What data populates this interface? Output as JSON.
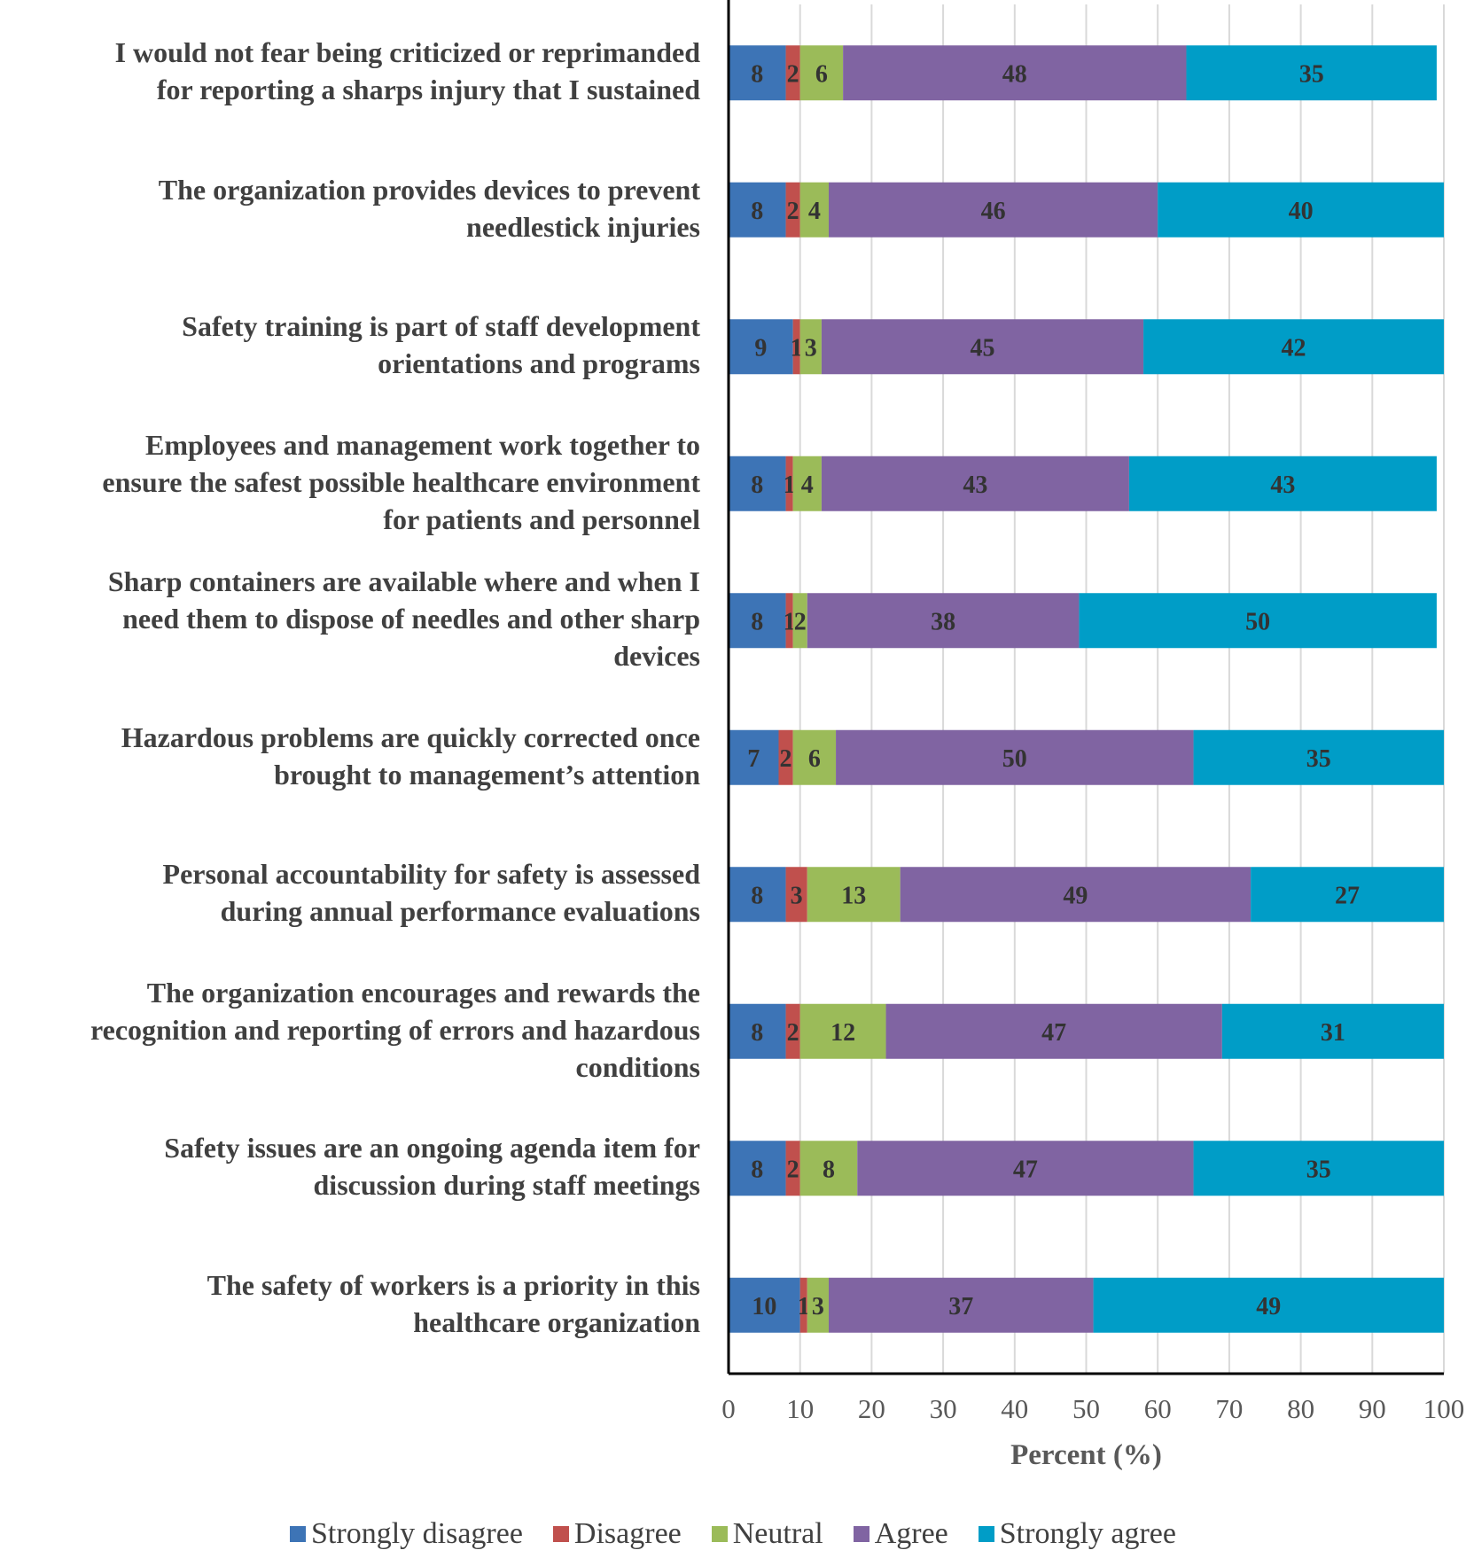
{
  "chart_data": {
    "type": "bar",
    "orientation": "horizontal",
    "stacked": true,
    "xlabel": "Percent (%)",
    "ylabel": "",
    "xlim": [
      0,
      100
    ],
    "xticks": [
      "0",
      "10",
      "20",
      "30",
      "40",
      "50",
      "60",
      "70",
      "80",
      "90",
      "100"
    ],
    "grid": true,
    "legend_position": "bottom",
    "categories": [
      "I would not fear being criticized or reprimanded\nfor reporting a sharps injury that I sustained",
      "The organization provides devices to prevent\nneedlestick injuries",
      "Safety training is part of staff development\norientations and programs",
      "Employees and management work together to\nensure the safest possible healthcare environment\nfor patients and personnel",
      "Sharp containers are available where and when I\nneed them to dispose of needles and other sharp\ndevices",
      "Hazardous problems are quickly corrected once\nbrought to management’s attention",
      "Personal accountability for safety is assessed\nduring annual performance evaluations",
      "The organization encourages and rewards the\nrecognition and reporting of errors and hazardous\nconditions",
      "Safety issues are an ongoing agenda item for\ndiscussion during staff meetings",
      "The safety of workers is a priority in this\nhealthcare organization"
    ],
    "series": [
      {
        "name": "Strongly disagree",
        "color": "#3D74B6",
        "values": [
          8,
          8,
          9,
          8,
          8,
          7,
          8,
          8,
          8,
          10
        ]
      },
      {
        "name": "Disagree",
        "color": "#C0504D",
        "values": [
          2,
          2,
          1,
          1,
          1,
          2,
          3,
          2,
          2,
          1
        ]
      },
      {
        "name": "Neutral",
        "color": "#9BBB59",
        "values": [
          6,
          4,
          3,
          4,
          2,
          6,
          13,
          12,
          8,
          3
        ]
      },
      {
        "name": "Agree",
        "color": "#8064A2",
        "values": [
          48,
          46,
          45,
          43,
          38,
          50,
          49,
          47,
          47,
          37
        ]
      },
      {
        "name": "Strongly agree",
        "color": "#009DC7",
        "values": [
          35,
          40,
          42,
          43,
          50,
          35,
          27,
          31,
          35,
          49
        ]
      }
    ]
  }
}
